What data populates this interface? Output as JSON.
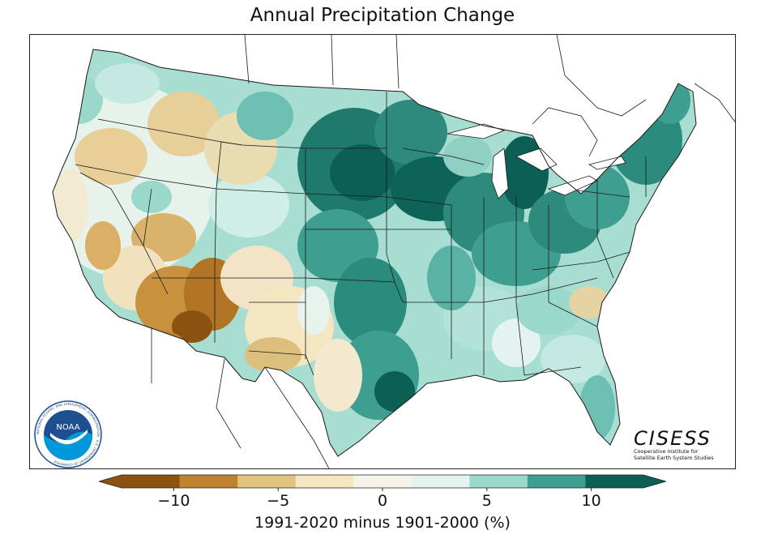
{
  "title": "Annual Precipitation Change",
  "colorbar": {
    "label": "1991-2020 minus 1901-2000 (%)",
    "ticks": [
      {
        "value": -10,
        "label": "−10"
      },
      {
        "value": -5,
        "label": "−5"
      },
      {
        "value": 0,
        "label": "0"
      },
      {
        "value": 5,
        "label": "5"
      },
      {
        "value": 10,
        "label": "10"
      }
    ],
    "range": [
      -12.5,
      12.5
    ],
    "step": 2.5,
    "colors": [
      "#8c520f",
      "#bf822f",
      "#dfc37e",
      "#f5e6c2",
      "#f5f2e8",
      "#e4f3f0",
      "#9bd8cc",
      "#3e9e8f",
      "#0b5f54"
    ]
  },
  "logos": {
    "noaa": {
      "name": "NOAA",
      "ring_text": "NATIONAL OCEANIC AND ATMOSPHERIC ADMINISTRATION · U.S. DEPARTMENT OF COMMERCE"
    },
    "cisess": {
      "name": "CISESS",
      "subtitle_line1": "Cooperative Institute for",
      "subtitle_line2": "Satellite Earth System Studies"
    }
  },
  "map": {
    "region": "Contiguous United States",
    "colors": {
      "ocean": "#ffffff",
      "land_outside": "#ffffff",
      "border": "#1a1a1a"
    }
  }
}
